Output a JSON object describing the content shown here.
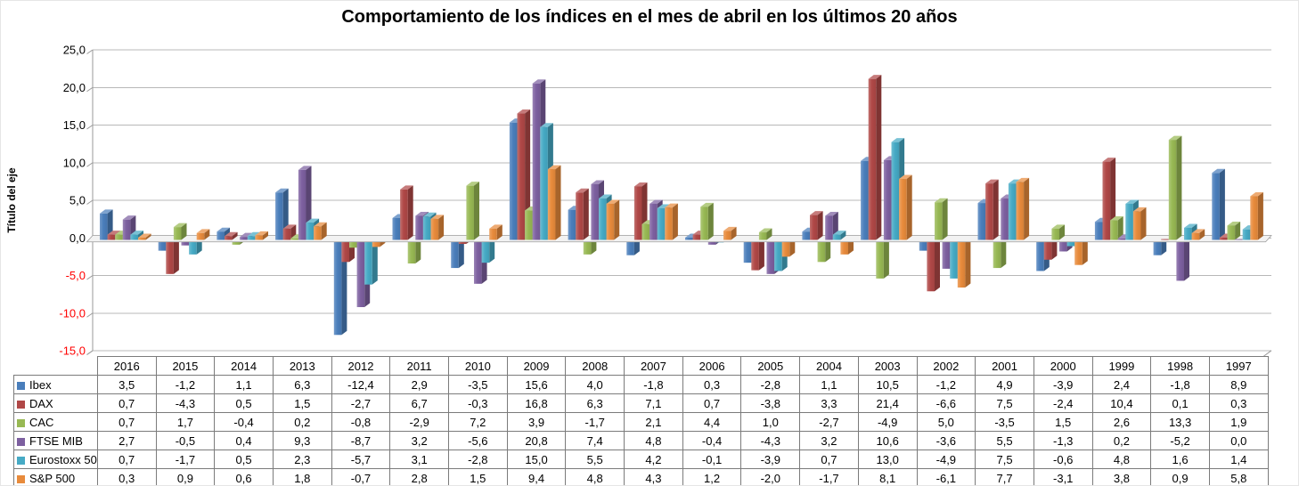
{
  "title": "Comportamiento de los índices en el mes de abril en los últimos 20 años",
  "y_axis": {
    "title": "Título del eje",
    "ticks": [
      25,
      20,
      15,
      10,
      5,
      0,
      -5,
      -10,
      -15
    ],
    "tick_color_positive": "#000000",
    "tick_color_negative": "#FF0000",
    "decimal_separator": ","
  },
  "colors": {
    "gridline": "#b8b8b8",
    "axis": "#9a9a9a",
    "floor_fill": "#f2f2f2",
    "table_border": "#7b7b7b"
  },
  "chart_data": {
    "type": "bar",
    "title": "Comportamiento de los índices en el mes de abril en los últimos 20 años",
    "xlabel": "",
    "ylabel": "Título del eje",
    "ylim": [
      -15,
      25
    ],
    "grid": true,
    "style": "3d-column",
    "legend_position": "data-table-left",
    "decimal_separator": ",",
    "categories": [
      "2016",
      "2015",
      "2014",
      "2013",
      "2012",
      "2011",
      "2010",
      "2009",
      "2008",
      "2007",
      "2006",
      "2005",
      "2004",
      "2003",
      "2002",
      "2001",
      "2000",
      "1999",
      "1998",
      "1997"
    ],
    "series": [
      {
        "name": "Ibex",
        "color": "#4A7EBB",
        "values": [
          3.5,
          -1.2,
          1.1,
          6.3,
          -12.4,
          2.9,
          -3.5,
          15.6,
          4.0,
          -1.8,
          0.3,
          -2.8,
          1.1,
          10.5,
          -1.2,
          4.9,
          -3.9,
          2.4,
          -1.8,
          8.9
        ]
      },
      {
        "name": "DAX",
        "color": "#B04847",
        "values": [
          0.7,
          -4.3,
          0.5,
          1.5,
          -2.7,
          6.7,
          -0.3,
          16.8,
          6.3,
          7.1,
          0.7,
          -3.8,
          3.3,
          21.4,
          -6.6,
          7.5,
          -2.4,
          10.4,
          0.1,
          0.3
        ]
      },
      {
        "name": "CAC",
        "color": "#98B954",
        "values": [
          0.7,
          1.7,
          -0.4,
          0.2,
          -0.8,
          -2.9,
          7.2,
          3.9,
          -1.7,
          2.1,
          4.4,
          1.0,
          -2.7,
          -4.9,
          5.0,
          -3.5,
          1.5,
          2.6,
          13.3,
          1.9
        ]
      },
      {
        "name": "FTSE MIB",
        "color": "#7D60A0",
        "values": [
          2.7,
          -0.5,
          0.4,
          9.3,
          -8.7,
          3.2,
          -5.6,
          20.8,
          7.4,
          4.8,
          -0.4,
          -4.3,
          3.2,
          10.6,
          -3.6,
          5.5,
          -1.3,
          0.2,
          -5.2,
          0.0
        ]
      },
      {
        "name": "Eurostoxx 50",
        "color": "#46AAC5",
        "values": [
          0.7,
          -1.7,
          0.5,
          2.3,
          -5.7,
          3.1,
          -2.8,
          15.0,
          5.5,
          4.2,
          -0.1,
          -3.9,
          0.7,
          13.0,
          -4.9,
          7.5,
          -0.6,
          4.8,
          1.6,
          1.4
        ]
      },
      {
        "name": "S&P 500",
        "color": "#E88B3C",
        "values": [
          0.3,
          0.9,
          0.6,
          1.8,
          -0.7,
          2.8,
          1.5,
          9.4,
          4.8,
          4.3,
          1.2,
          -2.0,
          -1.7,
          8.1,
          -6.1,
          7.7,
          -3.1,
          3.8,
          0.9,
          5.8
        ]
      }
    ]
  }
}
